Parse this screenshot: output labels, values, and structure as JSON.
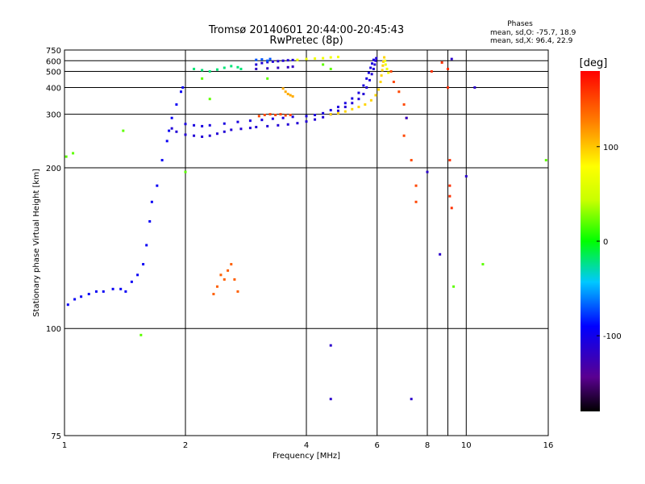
{
  "chart_data": {
    "type": "scatter",
    "title": "Tromsø 20140601 20:44:00-20:45:43",
    "subtitle": "RwPretec (8p)",
    "xlabel": "Frequency [MHz]",
    "ylabel": "Stationary phase Virtual Height [km]",
    "x_scale": "log",
    "y_scale": "reciprocal",
    "xlim": [
      1,
      16
    ],
    "ylim": [
      75,
      750
    ],
    "x_ticks": [
      1,
      2,
      4,
      6,
      8,
      10,
      16
    ],
    "x_gridlines": [
      2,
      4,
      6,
      8,
      9,
      10
    ],
    "y_ticks": [
      75,
      100,
      200,
      300,
      400,
      500,
      600,
      750
    ],
    "grid": true,
    "stats": {
      "heading": "Phases",
      "line1": "mean, sd,O: -75.7, 18.9",
      "line2": "mean, sd,X:  96.4, 22.9"
    },
    "colorbar": {
      "label": "[deg]",
      "range": [
        -180,
        180
      ],
      "ticks": [
        100,
        0,
        -100
      ]
    },
    "series": [
      {
        "color_value": -95,
        "points": [
          [
            1.02,
            108
          ],
          [
            1.06,
            110
          ],
          [
            1.1,
            111
          ],
          [
            1.15,
            112
          ],
          [
            1.2,
            113
          ],
          [
            1.25,
            113
          ],
          [
            1.32,
            114
          ],
          [
            1.38,
            114
          ],
          [
            1.42,
            113
          ],
          [
            1.47,
            117
          ],
          [
            1.52,
            120
          ],
          [
            1.57,
            125
          ],
          [
            1.6,
            135
          ],
          [
            1.63,
            150
          ],
          [
            1.65,
            165
          ],
          [
            1.7,
            180
          ],
          [
            1.75,
            210
          ],
          [
            1.8,
            240
          ],
          [
            1.82,
            260
          ],
          [
            1.85,
            290
          ],
          [
            1.9,
            330
          ],
          [
            1.95,
            380
          ],
          [
            1.97,
            400
          ]
        ]
      },
      {
        "color_value": -110,
        "points": [
          [
            1.85,
            265
          ],
          [
            1.9,
            258
          ],
          [
            2.0,
            252
          ],
          [
            2.1,
            250
          ],
          [
            2.2,
            248
          ],
          [
            2.3,
            250
          ],
          [
            2.4,
            254
          ],
          [
            2.5,
            258
          ],
          [
            2.6,
            262
          ],
          [
            2.75,
            264
          ],
          [
            2.9,
            266
          ],
          [
            3.0,
            268
          ],
          [
            3.2,
            270
          ],
          [
            3.4,
            272
          ],
          [
            3.6,
            274
          ],
          [
            3.8,
            277
          ],
          [
            4.0,
            281
          ],
          [
            4.2,
            286
          ],
          [
            4.4,
            292
          ],
          [
            4.6,
            300
          ],
          [
            4.8,
            310
          ],
          [
            5.0,
            322
          ],
          [
            5.2,
            335
          ],
          [
            5.4,
            350
          ],
          [
            5.55,
            370
          ],
          [
            5.65,
            400
          ],
          [
            5.75,
            440
          ],
          [
            5.82,
            480
          ],
          [
            5.88,
            520
          ],
          [
            5.92,
            560
          ],
          [
            5.95,
            600
          ],
          [
            5.97,
            630
          ]
        ]
      },
      {
        "color_value": -105,
        "points": [
          [
            2.0,
            275
          ],
          [
            2.1,
            272
          ],
          [
            2.2,
            270
          ],
          [
            2.3,
            272
          ],
          [
            2.5,
            276
          ],
          [
            2.7,
            280
          ],
          [
            2.9,
            283
          ],
          [
            3.1,
            285
          ],
          [
            3.3,
            288
          ],
          [
            3.5,
            290
          ],
          [
            3.7,
            293
          ],
          [
            4.0,
            295
          ],
          [
            4.2,
            298
          ],
          [
            4.4,
            303
          ],
          [
            4.6,
            312
          ],
          [
            4.8,
            322
          ],
          [
            5.0,
            335
          ],
          [
            5.2,
            352
          ],
          [
            5.4,
            375
          ],
          [
            5.55,
            410
          ],
          [
            5.65,
            450
          ],
          [
            5.72,
            490
          ],
          [
            5.78,
            530
          ],
          [
            5.83,
            570
          ],
          [
            5.88,
            610
          ]
        ]
      },
      {
        "color_value": -20,
        "points": [
          [
            2.1,
            520
          ],
          [
            2.2,
            510
          ],
          [
            2.3,
            500
          ],
          [
            2.4,
            515
          ],
          [
            2.5,
            530
          ],
          [
            2.6,
            545
          ],
          [
            2.7,
            535
          ],
          [
            2.75,
            520
          ]
        ]
      },
      {
        "color_value": -110,
        "points": [
          [
            3.0,
            560
          ],
          [
            3.1,
            575
          ],
          [
            3.2,
            585
          ],
          [
            3.3,
            590
          ],
          [
            3.4,
            595
          ],
          [
            3.5,
            600
          ],
          [
            3.6,
            605
          ],
          [
            3.7,
            608
          ]
        ]
      },
      {
        "color_value": -120,
        "points": [
          [
            3.0,
            520
          ],
          [
            3.2,
            525
          ],
          [
            3.4,
            530
          ],
          [
            3.6,
            535
          ],
          [
            3.7,
            540
          ]
        ]
      },
      {
        "color_value": -70,
        "points": [
          [
            3.0,
            610
          ],
          [
            3.1,
            615
          ],
          [
            3.2,
            600
          ],
          [
            3.25,
            620
          ]
        ]
      },
      {
        "color_value": 70,
        "points": [
          [
            3.8,
            610
          ],
          [
            4.0,
            620
          ],
          [
            4.2,
            625
          ],
          [
            4.4,
            630
          ],
          [
            4.6,
            640
          ],
          [
            4.8,
            645
          ]
        ]
      },
      {
        "color_value": 140,
        "points": [
          [
            2.35,
            112
          ],
          [
            2.4,
            115
          ],
          [
            2.45,
            120
          ],
          [
            2.5,
            118
          ],
          [
            2.55,
            122
          ],
          [
            2.6,
            125
          ],
          [
            2.65,
            118
          ],
          [
            2.7,
            113
          ]
        ]
      },
      {
        "color_value": 150,
        "points": [
          [
            3.05,
            295
          ],
          [
            3.15,
            298
          ],
          [
            3.25,
            300
          ],
          [
            3.35,
            298
          ],
          [
            3.45,
            300
          ],
          [
            3.55,
            297
          ],
          [
            3.65,
            298
          ]
        ]
      },
      {
        "color_value": 110,
        "points": [
          [
            3.5,
            395
          ],
          [
            3.55,
            380
          ],
          [
            3.6,
            370
          ],
          [
            3.65,
            365
          ],
          [
            3.7,
            360
          ]
        ]
      },
      {
        "color_value": 95,
        "points": [
          [
            4.6,
            300
          ],
          [
            4.8,
            303
          ],
          [
            5.0,
            308
          ],
          [
            5.2,
            315
          ],
          [
            5.4,
            322
          ],
          [
            5.6,
            330
          ],
          [
            5.8,
            345
          ],
          [
            5.95,
            365
          ],
          [
            6.05,
            390
          ],
          [
            6.12,
            430
          ],
          [
            6.15,
            470
          ],
          [
            6.18,
            510
          ],
          [
            6.2,
            550
          ],
          [
            6.22,
            590
          ],
          [
            6.25,
            640
          ]
        ]
      },
      {
        "color_value": 70,
        "points": [
          [
            6.28,
            600
          ],
          [
            6.3,
            560
          ],
          [
            6.35,
            520
          ],
          [
            6.4,
            490
          ]
        ]
      },
      {
        "color_value": 150,
        "points": [
          [
            6.5,
            500
          ],
          [
            6.6,
            430
          ],
          [
            6.8,
            380
          ],
          [
            7.0,
            330
          ],
          [
            7.1,
            290
          ],
          [
            7.0,
            250
          ],
          [
            7.3,
            210
          ],
          [
            7.5,
            180
          ],
          [
            7.5,
            165
          ]
        ]
      },
      {
        "color_value": 160,
        "points": [
          [
            8.2,
            500
          ],
          [
            8.7,
            580
          ],
          [
            9.0,
            520
          ],
          [
            9.0,
            400
          ],
          [
            9.1,
            210
          ],
          [
            9.1,
            180
          ],
          [
            9.1,
            170
          ],
          [
            9.2,
            160
          ]
        ]
      },
      {
        "color_value": -115,
        "points": [
          [
            4.6,
            82
          ],
          [
            4.6,
            95
          ],
          [
            7.3,
            82
          ],
          [
            7.1,
            290
          ],
          [
            8.0,
            195
          ],
          [
            8.6,
            130
          ],
          [
            9.2,
            620
          ],
          [
            10.0,
            190
          ],
          [
            10.5,
            400
          ]
        ]
      },
      {
        "color_value": 20,
        "points": [
          [
            1.01,
            215
          ],
          [
            1.05,
            220
          ],
          [
            1.4,
            260
          ],
          [
            1.55,
            98
          ],
          [
            2.0,
            195
          ],
          [
            2.2,
            450
          ],
          [
            2.3,
            350
          ],
          [
            3.2,
            450
          ],
          [
            4.4,
            560
          ],
          [
            4.6,
            520
          ],
          [
            9.3,
            115
          ],
          [
            11.0,
            125
          ],
          [
            15.8,
            210
          ]
        ]
      }
    ]
  }
}
